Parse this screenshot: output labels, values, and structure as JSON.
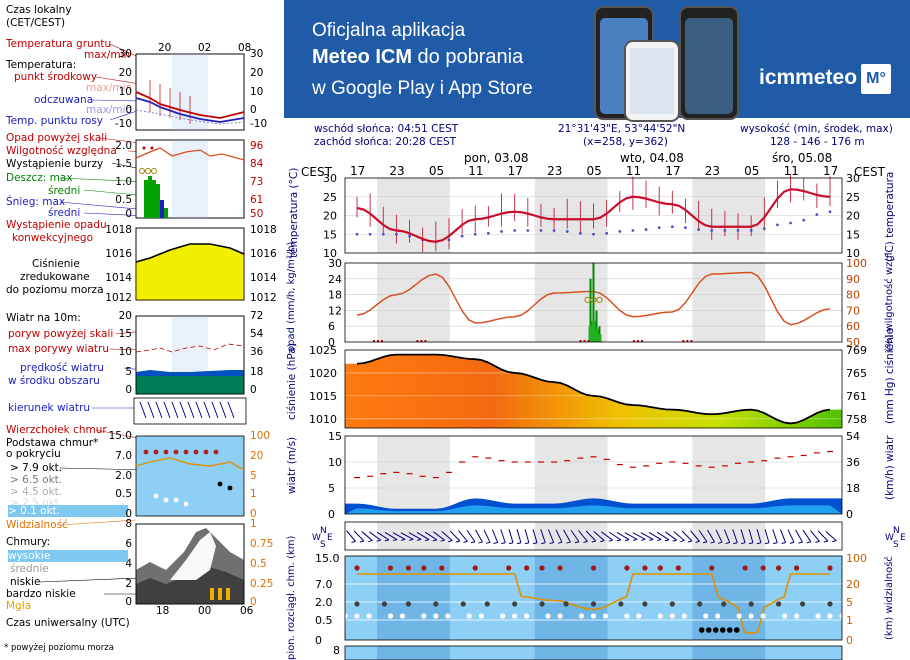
{
  "banner": {
    "line1": "Oficjalna aplikacja",
    "line2_bold": "Meteo ICM",
    "line2_rest": " do pobrania",
    "line3": "w Google Play i App Store",
    "logo_text": "icmmeteo",
    "logo_mark": "M°",
    "bg_color": "#1f5ba6"
  },
  "info": {
    "sunrise": "wschód słońca: 04:51 CEST",
    "sunset": "zachód słońca: 20:28 CEST",
    "coords": "21°31'43\"E, 53°44'52\"N",
    "grid": "(x=258,  y=362)",
    "altitude_label": "wysokość (min, środek, max)",
    "altitude_values": "128 - 146 - 176 m"
  },
  "time_axis": {
    "tz_left": "CEST",
    "tz_right": "CEST",
    "days": [
      "pon, 03.08",
      "wto, 04.08",
      "śro, 05.08"
    ],
    "hours": [
      "17",
      "23",
      "05",
      "11",
      "17",
      "23",
      "05",
      "11",
      "17",
      "23",
      "05",
      "11",
      "17"
    ]
  },
  "legend": {
    "time_header": [
      "Czas lokalny",
      "(CET/CEST)"
    ],
    "time_ticks": [
      "20",
      "02",
      "08"
    ],
    "temp_labels": {
      "ground": "Temperatura gruntu",
      "ground_maxmin": "max/min",
      "temp": "Temperatura:",
      "mid": "punkt środkowy",
      "maxmin": "max/min",
      "feels": "odczuwana",
      "feels_maxmin": "max/min",
      "dew": "Temp. punktu rosy"
    },
    "temp_ticks_left": [
      "30",
      "20",
      "10",
      "0",
      "-10"
    ],
    "temp_ticks_right": [
      "30",
      "20",
      "10",
      "0",
      "-10"
    ],
    "precip_labels": {
      "above": "Opad powyżej skali",
      "humidity": "Wilgotność względna",
      "storm": "Wystąpienie burzy",
      "rain_max": "Deszcz: max",
      "rain_mid": "średni",
      "snow_max": "Śnieg: max",
      "snow_mid": "średni",
      "occurrence": "Wystąpienie opadu",
      "convective": "konwekcyjnego"
    },
    "precip_ticks_left": [
      "2.0",
      "1.5",
      "1.0",
      "0.5",
      "0"
    ],
    "precip_ticks_right": [
      "96",
      "84",
      "73",
      "61",
      "50"
    ],
    "pressure_labels": [
      "Ciśnienie",
      "zredukowane",
      "do poziomu morza"
    ],
    "pressure_ticks": [
      "1018",
      "1016",
      "1014",
      "1012"
    ],
    "wind_labels": {
      "title": "Wiatr na 10m:",
      "gust_above": "poryw powyżej skali",
      "gust_max": "max porywy wiatru",
      "speed": "prędkość wiatru",
      "speed2": "w środku obszaru"
    },
    "wind_ticks_left": [
      "20",
      "15",
      "10",
      "5",
      "0"
    ],
    "wind_ticks_right": [
      "72",
      "54",
      "36",
      "18",
      "0"
    ],
    "wind_dir_label": "kierunek wiatru",
    "cloud_labels": {
      "cb": "Wierzchołek chmur",
      "base": "Podstawa chmur*",
      "base2": "o pokryciu",
      "o1": "> 7.9 okt.",
      "o2": "> 6.5 okt.",
      "o3": "> 4.5 okt.",
      "o4": "> 2.5 okt.",
      "o5": "> 0.1 okt.",
      "vis": "Widzialność"
    },
    "cloudbase_ticks_left": [
      "15.0",
      "7.0",
      "2.0",
      "0.5",
      "0"
    ],
    "cloudbase_ticks_right": [
      "100",
      "20",
      "5",
      "1",
      "0"
    ],
    "clouds_labels": {
      "title": "Chmury:",
      "high": "wysokie",
      "mid": "średnie",
      "low": "niskie",
      "vlow": "bardzo niskie",
      "fog": "Mgła"
    },
    "clouds_ticks_left": [
      "8",
      "6",
      "4",
      "2",
      "0"
    ],
    "clouds_ticks_right": [
      "1",
      "0.75",
      "0.5",
      "0.25",
      "0"
    ],
    "utc_ticks": [
      "18",
      "00",
      "06"
    ],
    "utc_label": "Czas uniwersalny (UTC)",
    "footnote": "* powyżej poziomu morza"
  },
  "panels": {
    "temp": {
      "ylabel_left": "temperatura (°C)",
      "ylabel_right": "(°C) temperatura",
      "ticks_left": [
        "30",
        "25",
        "20",
        "15",
        "10"
      ],
      "ticks_right": [
        "30",
        "25",
        "20",
        "15",
        "10"
      ]
    },
    "precip": {
      "ylabel_left": "opad (mm/h, kg/m²/h)",
      "ylabel_right": "(%) wilgotność wzgl.",
      "ticks_left": [
        "30",
        "24",
        "18",
        "12",
        "6",
        "0"
      ],
      "ticks_right": [
        "100",
        "90",
        "80",
        "70",
        "60",
        "50"
      ]
    },
    "pressure": {
      "ylabel_left": "ciśnienie (hPa)",
      "ylabel_right": "(mm Hg) ciśnienie",
      "ticks_left": [
        "1025",
        "1020",
        "1015",
        "1010"
      ],
      "ticks_right": [
        "769",
        "765",
        "761",
        "758"
      ]
    },
    "wind": {
      "ylabel_left": "wiatr (m/s)",
      "ylabel_right": "(km/h) wiatr",
      "ticks_left": [
        "15",
        "10",
        "5",
        "0"
      ],
      "ticks_right": [
        "54",
        "36",
        "18",
        "0"
      ]
    },
    "winddir": {
      "compass": [
        "N",
        "W",
        "E",
        "S"
      ]
    },
    "cloud": {
      "ylabel_left": "pion. rozciągł. chm. (km)",
      "ylabel_right": "(km) widzialność",
      "ticks_left": [
        "15.0",
        "7.0",
        "2.0",
        "0.5",
        "0"
      ],
      "ticks_right": [
        "100",
        "20",
        "5",
        "1",
        "0"
      ],
      "next_tick": "8"
    }
  },
  "chart_data": {
    "type": "line",
    "x": [
      "03.08 17",
      "03.08 23",
      "04.08 05",
      "04.08 11",
      "04.08 17",
      "04.08 23",
      "05.08 05",
      "05.08 11",
      "05.08 17",
      "05.08 23",
      "06.08 05",
      "06.08 11",
      "06.08 17"
    ],
    "series": [
      {
        "name": "temperatura",
        "values": [
          22,
          16,
          13,
          19,
          21,
          19,
          19,
          25,
          23,
          17,
          17,
          27,
          25
        ]
      },
      {
        "name": "temp. punktu rosy",
        "values": [
          15,
          15,
          13,
          15,
          16,
          16,
          15,
          16,
          17,
          16,
          16,
          18,
          21
        ]
      },
      {
        "name": "wilgotność wzgl.",
        "values": [
          67,
          80,
          93,
          62,
          66,
          81,
          82,
          66,
          69,
          93,
          94,
          61,
          71
        ]
      },
      {
        "name": "ciśnienie",
        "values": [
          1022,
          1024,
          1024,
          1023,
          1020,
          1018,
          1015,
          1013,
          1012,
          1011,
          1012,
          1009,
          1012
        ]
      },
      {
        "name": "prędkość wiatru",
        "values": [
          2,
          1,
          1,
          3,
          2,
          2,
          3,
          2,
          2,
          2,
          2,
          3,
          3
        ]
      },
      {
        "name": "max porywy wiatru",
        "values": [
          7,
          8,
          7,
          11,
          10,
          10,
          11,
          9,
          10,
          9,
          10,
          11,
          12
        ]
      },
      {
        "name": "widzialność",
        "values": [
          20,
          20,
          20,
          20,
          20,
          15,
          5,
          20,
          20,
          20,
          3,
          20,
          20
        ]
      }
    ],
    "ylim_temp": [
      10,
      30
    ],
    "ylim_pressure": [
      1008,
      1025
    ],
    "ylim_wind": [
      0,
      15
    ]
  }
}
